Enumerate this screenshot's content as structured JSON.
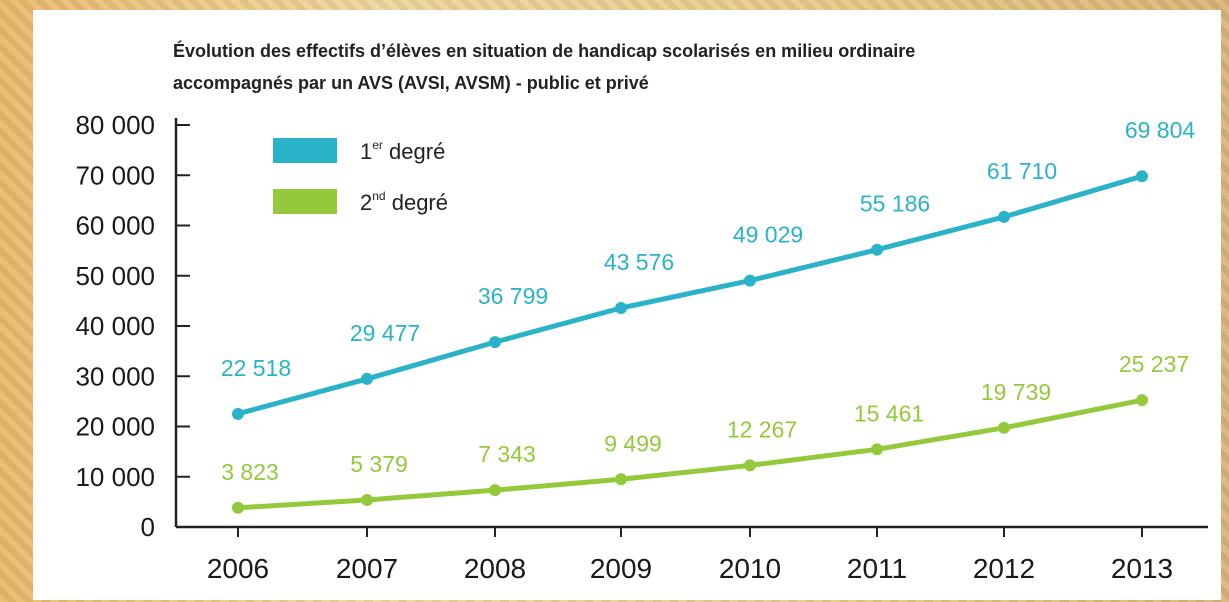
{
  "chart_data": {
    "type": "line",
    "title": "Évolution des effectifs d’élèves en situation de handicap scolarisés en milieu ordinaire",
    "subtitle": "accompagnés par un AVS (AVSI, AVSM) - public et privé",
    "xlabel": "",
    "ylabel": "",
    "x": [
      "2006",
      "2007",
      "2008",
      "2009",
      "2010",
      "2011",
      "2012",
      "2013"
    ],
    "ylim": [
      0,
      80000
    ],
    "yticks": [
      "0",
      "10 000",
      "20 000",
      "30 000",
      "40 000",
      "50 000",
      "60 000",
      "70 000",
      "80 000"
    ],
    "legend_position": "top-left",
    "grid": false,
    "series": [
      {
        "name": "1er degré",
        "color": "#2ab3c8",
        "values": [
          22518,
          29477,
          36799,
          43576,
          49029,
          55186,
          61710,
          69804
        ],
        "labels": [
          "22 518",
          "29 477",
          "36 799",
          "43 576",
          "49 029",
          "55 186",
          "61 710",
          "69 804"
        ]
      },
      {
        "name": "2nd degré",
        "color": "#93c93a",
        "values": [
          3823,
          5379,
          7343,
          9499,
          12267,
          15461,
          19739,
          25237
        ],
        "labels": [
          "3 823",
          "5 379",
          "7 343",
          "9 499",
          "12 267",
          "15 461",
          "19 739",
          "25 237"
        ]
      }
    ]
  }
}
